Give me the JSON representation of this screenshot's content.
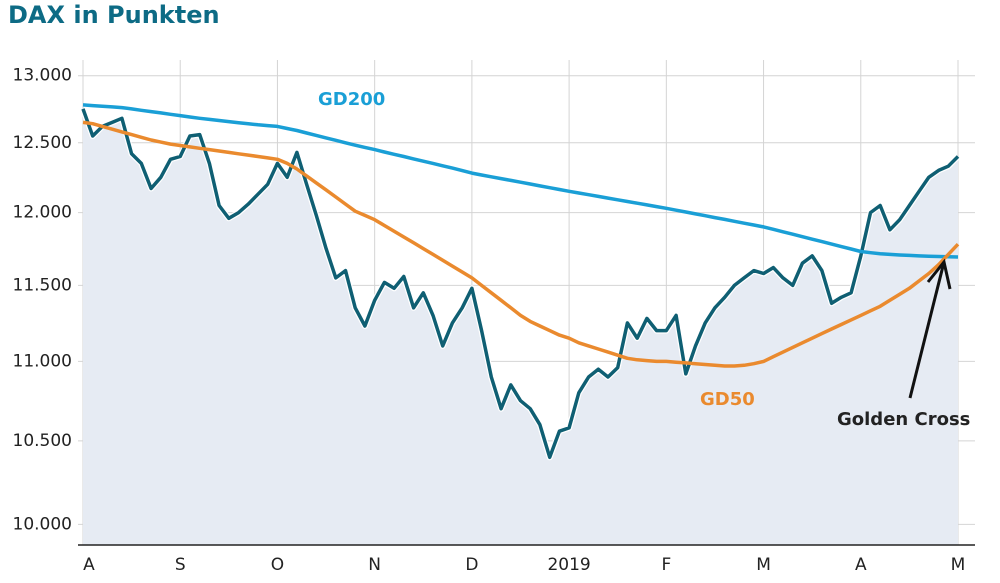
{
  "chart_data": {
    "type": "line",
    "title": "DAX in Punkten",
    "log_scale": true,
    "grid": true,
    "categories": [
      "A",
      null,
      null,
      null,
      null,
      null,
      null,
      null,
      null,
      null,
      "S",
      null,
      null,
      null,
      null,
      null,
      null,
      null,
      null,
      null,
      "O",
      null,
      null,
      null,
      null,
      null,
      null,
      null,
      null,
      null,
      "N",
      null,
      null,
      null,
      null,
      null,
      null,
      null,
      null,
      null,
      "D",
      null,
      null,
      null,
      null,
      null,
      null,
      null,
      null,
      null,
      "2019",
      null,
      null,
      null,
      null,
      null,
      null,
      null,
      null,
      null,
      "F",
      null,
      null,
      null,
      null,
      null,
      null,
      null,
      null,
      null,
      "M",
      null,
      null,
      null,
      null,
      null,
      null,
      null,
      null,
      null,
      "A",
      null,
      null,
      null,
      null,
      null,
      null,
      null,
      null,
      null,
      "M"
    ],
    "series": [
      {
        "color": "#0f5f73",
        "fill": "#e6ebf3",
        "values": [
          12750,
          12550,
          12620,
          12650,
          12680,
          12420,
          12350,
          12170,
          12250,
          12380,
          12400,
          12550,
          12560,
          12350,
          12050,
          11960,
          12000,
          12060,
          12130,
          12200,
          12350,
          12250,
          12430,
          12200,
          11980,
          11750,
          11550,
          11600,
          11350,
          11230,
          11400,
          11520,
          11480,
          11560,
          11350,
          11450,
          11300,
          11100,
          11250,
          11350,
          11480,
          11200,
          10900,
          10700,
          10850,
          10750,
          10700,
          10600,
          10400,
          10560,
          10580,
          10800,
          10900,
          10950,
          10900,
          10960,
          11250,
          11150,
          11280,
          11200,
          11200,
          11300,
          10920,
          11100,
          11250,
          11350,
          11420,
          11500,
          11550,
          11600,
          11580,
          11620,
          11550,
          11500,
          11650,
          11700,
          11600,
          11380,
          11420,
          11450,
          11700,
          12000,
          12050,
          11880,
          11950,
          12050,
          12150,
          12250,
          12300,
          12330,
          12400
        ]
      },
      {
        "name": "GD200",
        "color": "#1a9fd6",
        "values": [
          12780,
          12775,
          12770,
          12765,
          12760,
          12750,
          12740,
          12730,
          12720,
          12710,
          12700,
          12690,
          12680,
          12672,
          12664,
          12656,
          12648,
          12640,
          12632,
          12626,
          12620,
          12605,
          12590,
          12572,
          12554,
          12536,
          12518,
          12500,
          12482,
          12466,
          12450,
          12433,
          12416,
          12400,
          12383,
          12366,
          12350,
          12333,
          12316,
          12298,
          12280,
          12267,
          12254,
          12241,
          12228,
          12215,
          12202,
          12189,
          12176,
          12163,
          12150,
          12138,
          12126,
          12114,
          12102,
          12090,
          12078,
          12066,
          12054,
          12042,
          12030,
          12017,
          12004,
          11991,
          11978,
          11965,
          11952,
          11939,
          11926,
          11913,
          11900,
          11883,
          11866,
          11849,
          11832,
          11815,
          11798,
          11781,
          11764,
          11747,
          11730,
          11722,
          11715,
          11710,
          11706,
          11703,
          11700,
          11698,
          11696,
          11694,
          11692
        ]
      },
      {
        "name": "GD50",
        "color": "#ea8a2e",
        "values": [
          12650,
          12640,
          12620,
          12600,
          12580,
          12560,
          12540,
          12520,
          12505,
          12490,
          12480,
          12470,
          12460,
          12450,
          12440,
          12430,
          12420,
          12410,
          12400,
          12390,
          12380,
          12350,
          12310,
          12260,
          12210,
          12160,
          12110,
          12060,
          12010,
          11980,
          11950,
          11910,
          11870,
          11830,
          11790,
          11750,
          11710,
          11670,
          11630,
          11590,
          11550,
          11500,
          11450,
          11400,
          11350,
          11300,
          11260,
          11230,
          11200,
          11170,
          11150,
          11120,
          11100,
          11080,
          11060,
          11040,
          11020,
          11010,
          11005,
          11000,
          11000,
          10995,
          10990,
          10985,
          10980,
          10975,
          10970,
          10970,
          10975,
          10985,
          11000,
          11030,
          11060,
          11090,
          11120,
          11150,
          11180,
          11210,
          11240,
          11270,
          11300,
          11330,
          11360,
          11400,
          11440,
          11480,
          11530,
          11580,
          11640,
          11710,
          11780
        ]
      }
    ],
    "annotation": "Golden Cross",
    "ylim": [
      9880,
      13120
    ],
    "yticks": [
      {
        "value": 10000,
        "label": "10.000"
      },
      {
        "value": 10500,
        "label": "10.500"
      },
      {
        "value": 11000,
        "label": "11.000"
      },
      {
        "value": 11500,
        "label": "11.500"
      },
      {
        "value": 12000,
        "label": "12.000"
      },
      {
        "value": 12500,
        "label": "12.500"
      },
      {
        "value": 13000,
        "label": "13.000"
      }
    ]
  }
}
